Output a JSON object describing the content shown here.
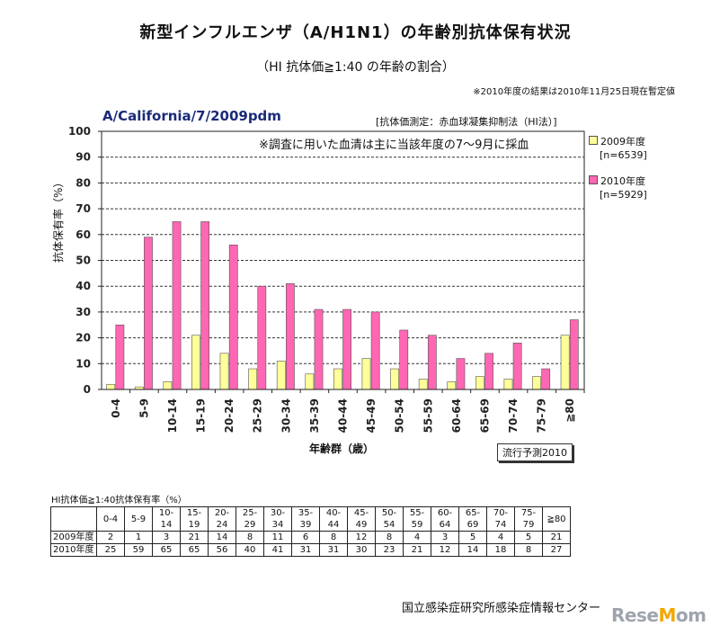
{
  "header": {
    "title": "新型インフルエンザ（A/H1N1）の年齢別抗体保有状況",
    "subtitle": "（HI 抗体価≧1:40 の年齢の割合）",
    "note": "※2010年度の結果は2010年11月25日現在暫定値"
  },
  "chart_data": {
    "type": "bar",
    "strain": "A/California/7/2009pdm",
    "method": "[抗体価測定：赤血球凝集抑制法（HI法）]",
    "annotation": "※調査に用いた血清は主に当該年度の7～9月に採血",
    "stamp": "流行予測2010",
    "xlabel": "年齢群（歳）",
    "ylabel": "抗体保有率（%）",
    "ylim": [
      0,
      100
    ],
    "yticks": [
      0,
      10,
      20,
      30,
      40,
      50,
      60,
      70,
      80,
      90,
      100
    ],
    "grid": true,
    "legend_position": "right",
    "categories": [
      "0-4",
      "5-9",
      "10-14",
      "15-19",
      "20-24",
      "25-29",
      "30-34",
      "35-39",
      "40-44",
      "45-49",
      "50-54",
      "55-59",
      "60-64",
      "65-69",
      "70-74",
      "75-79",
      "≧80"
    ],
    "series": [
      {
        "name": "2009年度",
        "n": "[n=6539]",
        "color": "#ffff99",
        "values": [
          2,
          1,
          3,
          21,
          14,
          8,
          11,
          6,
          8,
          12,
          8,
          4,
          3,
          5,
          4,
          5,
          21
        ]
      },
      {
        "name": "2010年度",
        "n": "[n=5929]",
        "color": "#ff66b3",
        "values": [
          25,
          59,
          65,
          65,
          56,
          40,
          41,
          31,
          31,
          30,
          23,
          21,
          12,
          14,
          18,
          8,
          27
        ]
      }
    ]
  },
  "table": {
    "title": "HI抗体価≧1:40抗体保有率（%）",
    "rows": [
      {
        "label": "2009年度",
        "values": [
          "2",
          "1",
          "3",
          "21",
          "14",
          "8",
          "11",
          "6",
          "8",
          "12",
          "8",
          "4",
          "3",
          "5",
          "4",
          "5",
          "21"
        ]
      },
      {
        "label": "2010年度",
        "values": [
          "25",
          "59",
          "65",
          "65",
          "56",
          "40",
          "41",
          "31",
          "31",
          "30",
          "23",
          "21",
          "12",
          "14",
          "18",
          "8",
          "27"
        ]
      }
    ]
  },
  "footer": {
    "source": "国立感染症研究所感染症情報センター",
    "brand_prefix": "Rese",
    "brand_dot": "M",
    "brand_suffix": "om"
  }
}
